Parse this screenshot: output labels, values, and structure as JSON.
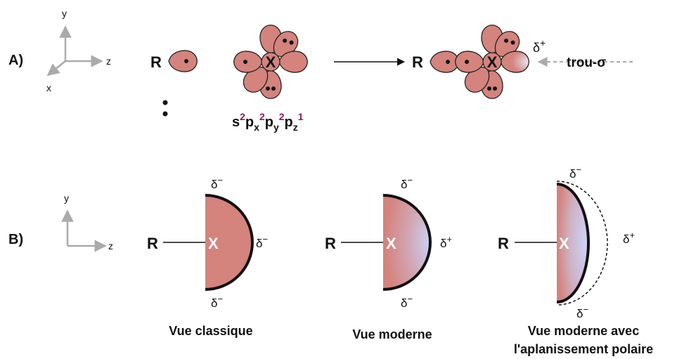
{
  "panel_a": {
    "label": "A)",
    "axes": {
      "y": "y",
      "z": "z",
      "x": "x"
    },
    "reactant_r": "R",
    "atom": "X",
    "config": [
      {
        "base": "s",
        "sup": "2"
      },
      {
        "base": "p",
        "sub": "x",
        "sup": "2"
      },
      {
        "base": "p",
        "sub": "y",
        "sup": "2"
      },
      {
        "base": "p",
        "sub": "z",
        "sup": "1"
      }
    ],
    "product_r": "R",
    "product_atom": "X",
    "delta": {
      "symbol": "δ",
      "sign": "+"
    },
    "hole": "trou-σ"
  },
  "panel_b": {
    "label": "B)",
    "axes": {
      "y": "y",
      "z": "z"
    },
    "views": [
      {
        "r": "R",
        "atom": "X",
        "top": {
          "symbol": "δ",
          "sign": "−"
        },
        "right": {
          "symbol": "δ",
          "sign": "−"
        },
        "bottom": {
          "symbol": "δ",
          "sign": "−"
        },
        "caption": [
          "Vue classique"
        ]
      },
      {
        "r": "R",
        "atom": "X",
        "top": {
          "symbol": "δ",
          "sign": "−"
        },
        "right": {
          "symbol": "δ",
          "sign": "+"
        },
        "bottom": {
          "symbol": "δ",
          "sign": "−"
        },
        "caption": [
          "Vue moderne"
        ]
      },
      {
        "r": "R",
        "atom": "X",
        "top": {
          "symbol": "δ",
          "sign": "−"
        },
        "right": {
          "symbol": "δ",
          "sign": "+"
        },
        "bottom": {
          "symbol": "δ",
          "sign": "−"
        },
        "caption": [
          "Vue moderne avec",
          "l'aplanissement polaire"
        ]
      }
    ]
  }
}
